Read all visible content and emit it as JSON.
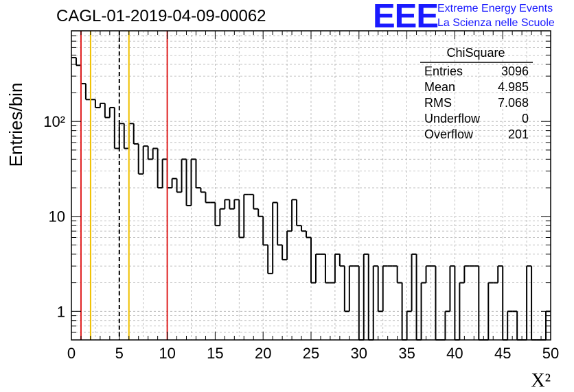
{
  "chart_data": {
    "type": "bar",
    "title": "CAGL-01-2019-04-09-00062",
    "xlabel": "X²",
    "ylabel": "Entries/bin",
    "xlim": [
      0,
      50
    ],
    "ylim": [
      0.5,
      900
    ],
    "yscale": "log",
    "grid": true,
    "bin_width": 0.5,
    "x_ticks": [
      "0",
      "5",
      "10",
      "15",
      "20",
      "25",
      "30",
      "35",
      "40",
      "45",
      "50"
    ],
    "y_ticks": [
      "1",
      "10",
      "10²"
    ],
    "values": [
      470,
      390,
      250,
      170,
      170,
      140,
      155,
      110,
      140,
      52,
      95,
      52,
      95,
      58,
      28,
      55,
      40,
      52,
      20,
      40,
      20,
      25,
      18,
      40,
      13,
      40,
      20,
      18,
      14,
      14,
      8,
      12,
      15,
      12,
      15,
      6,
      17,
      17,
      12,
      10,
      5,
      2.5,
      14,
      5,
      3.5,
      7,
      15,
      8,
      7,
      6,
      2,
      4,
      4,
      2,
      2,
      4,
      3,
      1,
      3,
      3,
      0,
      4,
      0,
      3,
      1,
      3,
      3,
      3,
      2,
      0,
      1,
      4,
      0,
      2,
      3,
      3,
      0,
      0,
      1,
      3,
      0,
      2,
      3,
      3,
      3,
      0,
      0,
      2,
      2,
      3,
      0,
      1,
      1,
      0,
      0,
      3,
      0,
      0,
      0,
      1
    ],
    "vertical_lines": [
      {
        "x": 1,
        "color": "#e02020",
        "style": "solid"
      },
      {
        "x": 2,
        "color": "#f0c000",
        "style": "solid"
      },
      {
        "x": 5,
        "color": "#000000",
        "style": "dashed"
      },
      {
        "x": 6,
        "color": "#f0c000",
        "style": "solid"
      },
      {
        "x": 10,
        "color": "#e02020",
        "style": "solid"
      }
    ],
    "stats_box": {
      "title": "ChiSquare",
      "rows": [
        {
          "label": "Entries",
          "value": "3096"
        },
        {
          "label": "Mean",
          "value": "4.985"
        },
        {
          "label": "RMS",
          "value": "7.068"
        },
        {
          "label": "Underflow",
          "value": "0"
        },
        {
          "label": "Overflow",
          "value": "201"
        }
      ]
    }
  },
  "logo": {
    "mark": "EEE",
    "line1": "Extreme Energy Events",
    "line2": "La Scienza nelle Scuole",
    "color": "#1a1aff"
  }
}
